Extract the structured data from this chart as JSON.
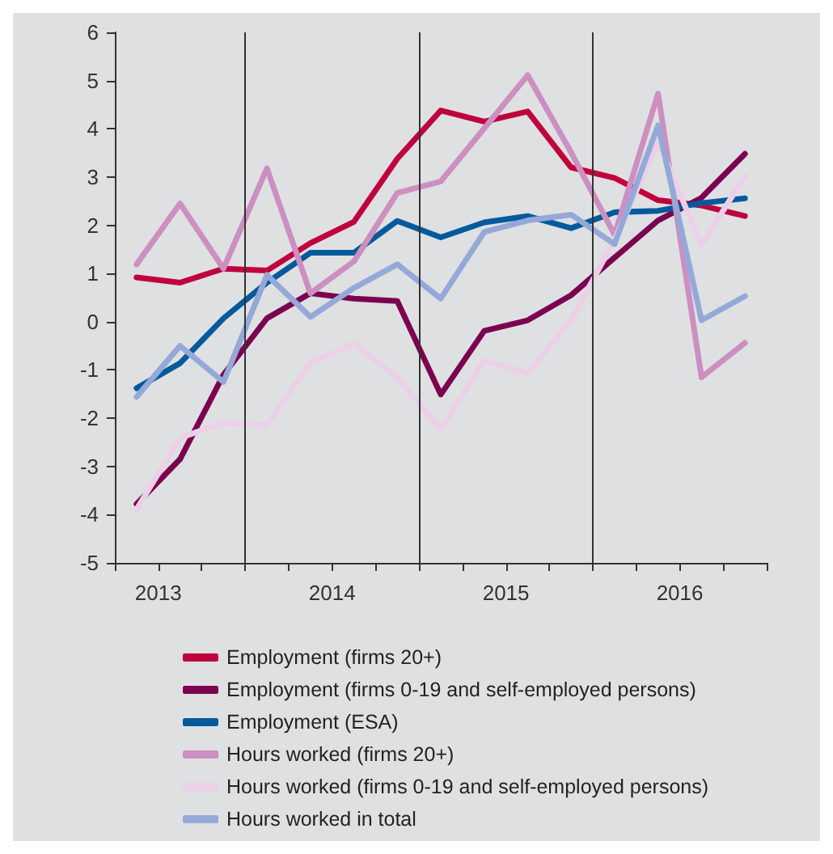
{
  "chart_data": {
    "type": "line",
    "x": [
      2013.375,
      2013.625,
      2013.875,
      2014.125,
      2014.375,
      2014.625,
      2014.875,
      2015.125,
      2015.375,
      2015.625,
      2015.875,
      2016.125,
      2016.375,
      2016.625,
      2016.875
    ],
    "xlim": [
      2013.25,
      2017
    ],
    "xticks": [
      {
        "value": 2013.25,
        "label": null
      },
      {
        "value": 2013.5,
        "label": "2013"
      },
      {
        "value": 2013.75,
        "label": null
      },
      {
        "value": 2014,
        "label": null
      },
      {
        "value": 2014.25,
        "label": null
      },
      {
        "value": 2014.5,
        "label": "2014"
      },
      {
        "value": 2014.75,
        "label": null
      },
      {
        "value": 2015,
        "label": null
      },
      {
        "value": 2015.25,
        "label": null
      },
      {
        "value": 2015.5,
        "label": "2015"
      },
      {
        "value": 2015.75,
        "label": null
      },
      {
        "value": 2016,
        "label": null
      },
      {
        "value": 2016.25,
        "label": null
      },
      {
        "value": 2016.5,
        "label": "2016"
      },
      {
        "value": 2016.75,
        "label": null
      },
      {
        "value": 2017,
        "label": null
      }
    ],
    "ylim": [
      -5,
      6
    ],
    "yticks": [
      -5,
      -4,
      -3,
      -2,
      -1,
      0,
      1,
      2,
      3,
      4,
      5,
      6
    ],
    "grid": false,
    "legend": "bottom",
    "marker": "none",
    "line_style": "solid",
    "ref_lines": [
      {
        "axis": "x",
        "value": 2014,
        "color": "#333333"
      },
      {
        "axis": "x",
        "value": 2015,
        "color": "#333333"
      },
      {
        "axis": "x",
        "value": 2016,
        "color": "#333333"
      }
    ],
    "series": [
      {
        "name": "Employment (firms 20+)",
        "color": "#c0003c",
        "values": [
          0.92,
          0.81,
          1.1,
          1.06,
          1.63,
          2.07,
          3.38,
          4.38,
          4.15,
          4.36,
          3.2,
          2.98,
          2.52,
          2.41,
          2.19
        ]
      },
      {
        "name": "Employment (firms 0-19 and self-employed persons)",
        "color": "#7b0050",
        "values": [
          -3.78,
          -2.85,
          -1.1,
          0.07,
          0.59,
          0.48,
          0.43,
          -1.51,
          -0.19,
          0.03,
          0.55,
          1.33,
          2.1,
          2.57,
          3.48
        ]
      },
      {
        "name": "Employment (ESA)",
        "color": "#005a9c",
        "values": [
          -1.38,
          -0.86,
          0.07,
          0.81,
          1.43,
          1.43,
          2.09,
          1.75,
          2.06,
          2.19,
          1.94,
          2.27,
          2.3,
          2.46,
          2.56
        ]
      },
      {
        "name": "Hours worked (firms 20+)",
        "color": "#cc8fc0",
        "values": [
          1.19,
          2.45,
          1.1,
          3.18,
          0.59,
          1.25,
          2.67,
          2.91,
          4.01,
          5.11,
          3.51,
          1.8,
          4.73,
          -1.15,
          -0.44
        ]
      },
      {
        "name": "Hours worked (firms 0-19 and self-employed persons)",
        "color": "#ecd0e8",
        "values": [
          -3.89,
          -2.41,
          -2.09,
          -2.14,
          -0.86,
          -0.45,
          -1.16,
          -2.23,
          -0.8,
          -1.07,
          0.03,
          1.7,
          3.73,
          1.59,
          3.02
        ]
      },
      {
        "name": "Hours worked in total",
        "color": "#94a9d8",
        "values": [
          -1.56,
          -0.5,
          -1.25,
          0.97,
          0.1,
          0.7,
          1.19,
          0.48,
          1.86,
          2.1,
          2.22,
          1.61,
          4.07,
          0.03,
          0.53
        ]
      }
    ]
  }
}
